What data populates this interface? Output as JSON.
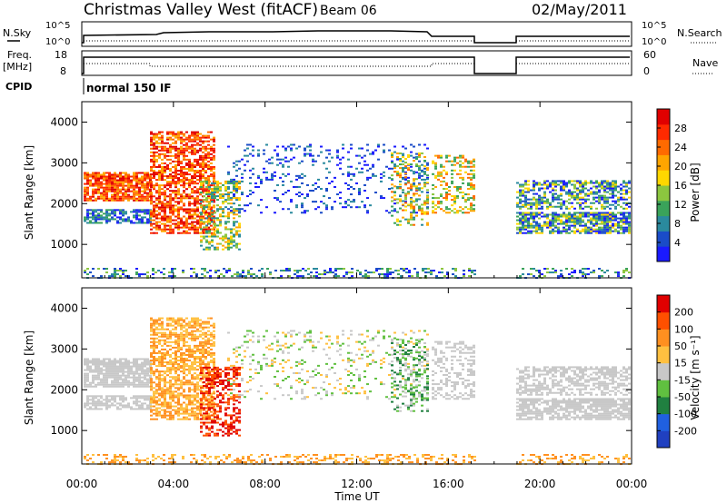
{
  "header": {
    "title": "Christmas Valley West (fitACF)",
    "beam": "Beam 06",
    "date": "02/May/2011"
  },
  "params": {
    "nsky_label": "N.Sky",
    "nsearch_label": "N.Search",
    "freq_label": "Freq.",
    "freq_unit": "[MHz]",
    "nave_label": "Nave",
    "cpid_label": "CPID",
    "cpid_text": "normal 150 IF",
    "left_ticks_n": [
      "10^5",
      "10^0"
    ],
    "right_ticks_n": [
      "10^5",
      "10^0"
    ],
    "left_ticks_f": [
      "18",
      "8"
    ],
    "right_ticks_f": [
      "60",
      "0"
    ]
  },
  "chart_data": [
    {
      "type": "heatmap",
      "name": "Power",
      "xlabel": "",
      "ylabel": "Slant Range [km]",
      "yticks": [
        "1000",
        "2000",
        "3000",
        "4000"
      ],
      "ylim": [
        180,
        4500
      ],
      "colorbar_label": "Power [dB]",
      "colorbar_ticks": [
        "4",
        "8",
        "12",
        "16",
        "20",
        "24",
        "28"
      ],
      "colorbar_colors": [
        "#1a1aff",
        "#1a4cc8",
        "#2a8a9e",
        "#3aa35a",
        "#8cc63f",
        "#ffd700",
        "#ffa500",
        "#ff6a00",
        "#ff2a00",
        "#e00000"
      ]
    },
    {
      "type": "heatmap",
      "name": "Velocity",
      "xlabel": "Time UT",
      "ylabel": "Slant Range [km]",
      "xticks": [
        "00:00",
        "04:00",
        "08:00",
        "12:00",
        "16:00",
        "20:00",
        "00:00"
      ],
      "yticks": [
        "1000",
        "2000",
        "3000",
        "4000"
      ],
      "ylim": [
        180,
        4500
      ],
      "colorbar_label": "Velocity [m s⁻¹]",
      "colorbar_ticks": [
        "200",
        "100",
        "50",
        "15",
        "-15",
        "-50",
        "-100",
        "-200"
      ],
      "colorbar_colors": [
        "#2040c0",
        "#2060e0",
        "#208040",
        "#60c040",
        "#c8c8c8",
        "#ffc040",
        "#ff9020",
        "#ff5000",
        "#e00000"
      ]
    }
  ],
  "xaxis": {
    "label": "Time UT",
    "ticks": [
      "00:00",
      "04:00",
      "08:00",
      "12:00",
      "16:00",
      "20:00",
      "00:00"
    ]
  }
}
